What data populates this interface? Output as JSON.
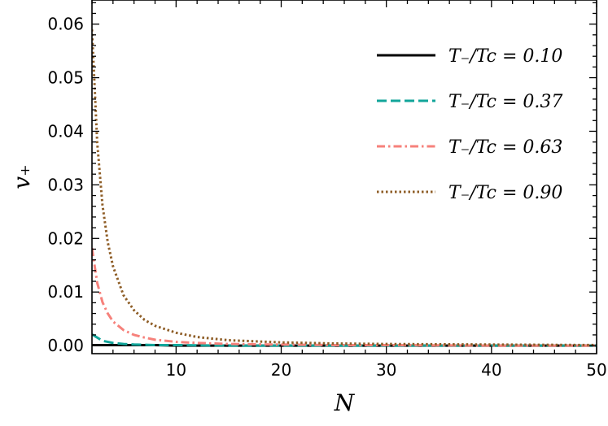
{
  "chart_data": {
    "type": "line",
    "xlabel": "N",
    "ylabel": "v₊",
    "xlim": [
      2,
      50
    ],
    "ylim": [
      -0.0015,
      0.0645
    ],
    "xticks": [
      10,
      20,
      30,
      40,
      50
    ],
    "xtick_labels": [
      "10",
      "20",
      "30",
      "40",
      "50"
    ],
    "yticks": [
      0.0,
      0.01,
      0.02,
      0.03,
      0.04,
      0.05,
      0.06
    ],
    "ytick_labels": [
      "0.00",
      "0.01",
      "0.02",
      "0.03",
      "0.04",
      "0.05",
      "0.06"
    ],
    "grid": false,
    "legend_position": "upper-right",
    "series": [
      {
        "name": "T₋/Tc = 0.10",
        "color": "#000000",
        "dash": "solid",
        "x": [
          2,
          3,
          4,
          5,
          6,
          8,
          10,
          15,
          20,
          30,
          40,
          50
        ],
        "y": [
          0.0001,
          0.0001,
          0.0001,
          0.0001,
          0.0001,
          0.0001,
          0.0,
          0.0,
          0.0,
          0.0,
          0.0,
          0.0
        ]
      },
      {
        "name": "T₋/Tc = 0.37",
        "color": "#12a59a",
        "dash": "dashed",
        "x": [
          2,
          3,
          4,
          5,
          6,
          8,
          10,
          15,
          20,
          30,
          40,
          50
        ],
        "y": [
          0.0021,
          0.0009,
          0.0005,
          0.0003,
          0.0002,
          0.0001,
          0.0001,
          0.0,
          0.0,
          0.0,
          0.0,
          0.0
        ]
      },
      {
        "name": "T₋/Tc = 0.63",
        "color": "#f6817b",
        "dash": "dashdot",
        "x": [
          2,
          2.5,
          3,
          3.5,
          4,
          5,
          6,
          7,
          8,
          10,
          12,
          15,
          20,
          25,
          30,
          40,
          50
        ],
        "y": [
          0.0182,
          0.0117,
          0.0081,
          0.006,
          0.0045,
          0.0029,
          0.002,
          0.0015,
          0.0011,
          0.0007,
          0.0005,
          0.0003,
          0.0002,
          0.0001,
          0.0001,
          0.0,
          0.0
        ]
      },
      {
        "name": "T₋/Tc = 0.90",
        "color": "#8e5d26",
        "dash": "dotted",
        "x": [
          2,
          2.5,
          3,
          3.5,
          4,
          5,
          6,
          7,
          8,
          10,
          12,
          15,
          20,
          25,
          30,
          40,
          50
        ],
        "y": [
          0.059,
          0.0378,
          0.0262,
          0.0193,
          0.0148,
          0.0094,
          0.0066,
          0.0048,
          0.0037,
          0.0024,
          0.0016,
          0.001,
          0.0006,
          0.0004,
          0.0003,
          0.0002,
          0.0001
        ]
      }
    ]
  }
}
